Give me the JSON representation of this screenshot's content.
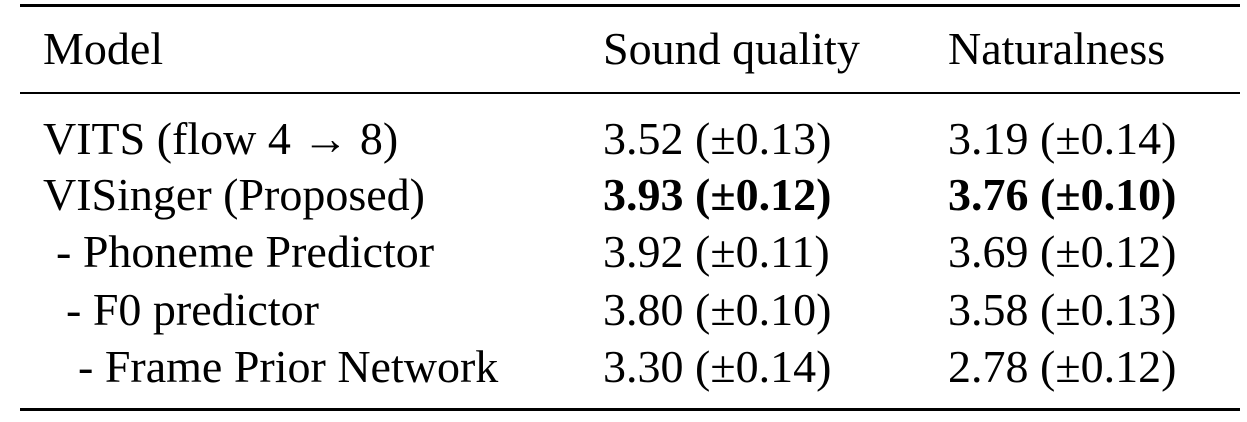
{
  "table": {
    "headers": {
      "model": "Model",
      "sound_quality": "Sound quality",
      "naturalness": "Naturalness"
    },
    "rows": [
      {
        "model": "VITS (flow 4 → 8)",
        "sound_quality": "3.52 (±0.13)",
        "naturalness": "3.19 (±0.14)",
        "bold": false
      },
      {
        "model": "VISinger (Proposed)",
        "sound_quality": "3.93 (±0.12)",
        "naturalness": "3.76 (±0.10)",
        "bold": true
      },
      {
        "model": "- Phoneme Predictor",
        "sound_quality": "3.92 (±0.11)",
        "naturalness": "3.69 (±0.12)",
        "bold": false
      },
      {
        "model": "- F0 predictor",
        "sound_quality": "3.80 (±0.10)",
        "naturalness": "3.58 (±0.13)",
        "bold": false
      },
      {
        "model": "- Frame Prior Network",
        "sound_quality": "3.30 (±0.14)",
        "naturalness": "2.78 (±0.12)",
        "bold": false
      }
    ]
  }
}
